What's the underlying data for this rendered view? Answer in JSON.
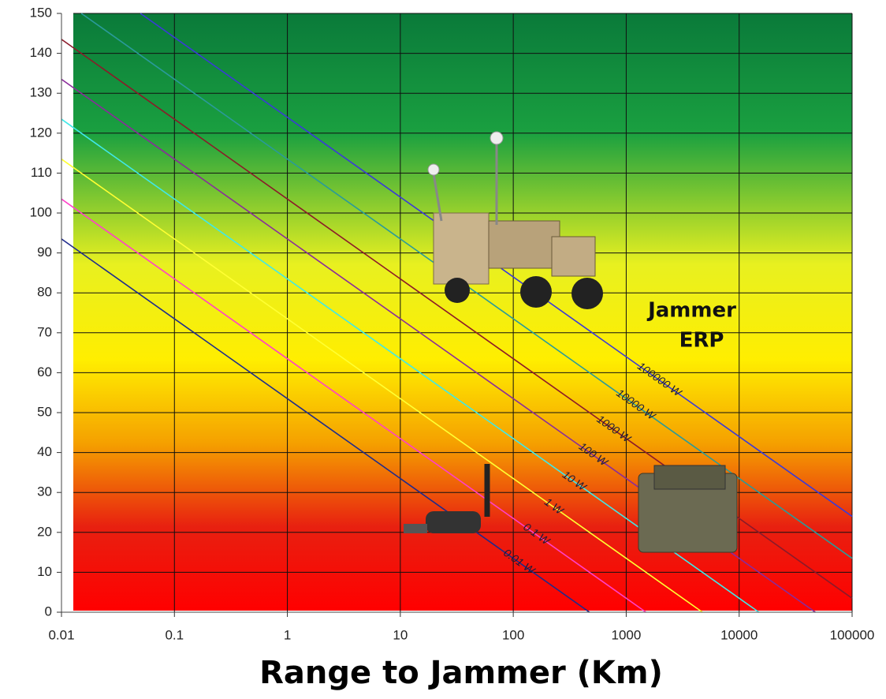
{
  "chart_data": {
    "type": "line",
    "x_label": "Range to Jammer  (Km)",
    "annotation": [
      "Jammer",
      "ERP"
    ],
    "xscale": "log",
    "xlim": [
      0.01,
      100000
    ],
    "xticks": [
      0.01,
      0.1,
      1,
      10,
      100,
      1000,
      10000,
      100000
    ],
    "ylim": [
      0,
      150
    ],
    "yticks": [
      0,
      10,
      20,
      30,
      40,
      50,
      60,
      70,
      80,
      90,
      100,
      110,
      120,
      130,
      140,
      150
    ],
    "grid": true,
    "series": [
      {
        "name": "0.01 W",
        "color": "#1f2a8c",
        "x": [
          0.01,
          473
        ],
        "values": [
          93.5,
          0
        ]
      },
      {
        "name": "0.1 W",
        "color": "#ff40c8",
        "x": [
          0.01,
          1496
        ],
        "values": [
          103.5,
          0
        ]
      },
      {
        "name": "1 W",
        "color": "#ffff33",
        "x": [
          0.01,
          4732
        ],
        "values": [
          113.5,
          0
        ]
      },
      {
        "name": "10 W",
        "color": "#40e8e8",
        "x": [
          0.01,
          14962
        ],
        "values": [
          123.5,
          0
        ]
      },
      {
        "name": "100 W",
        "color": "#8a2c9a",
        "x": [
          0.01,
          47315
        ],
        "values": [
          133.5,
          0
        ]
      },
      {
        "name": "1000 W",
        "color": "#8b1a2a",
        "x": [
          0.01,
          100000
        ],
        "values": [
          143.5,
          3.5
        ]
      },
      {
        "name": "10000 W",
        "color": "#2a9a9a",
        "x": [
          0.015,
          100000
        ],
        "values": [
          150,
          13.5
        ]
      },
      {
        "name": "100000 W",
        "color": "#3a3ad8",
        "x": [
          0.05,
          100000
        ],
        "values": [
          150,
          24
        ]
      }
    ]
  }
}
